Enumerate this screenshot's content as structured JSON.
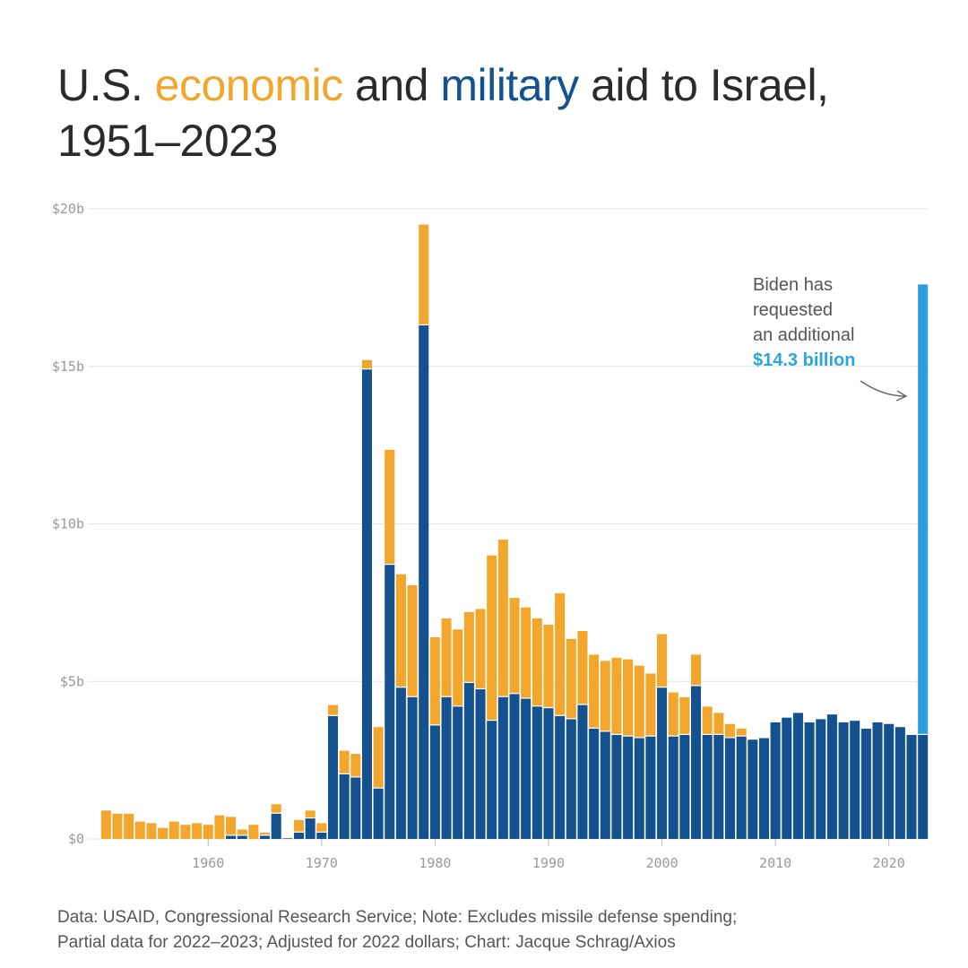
{
  "title": {
    "part1": "U.S. ",
    "economic": "economic",
    "part2": " and ",
    "military": "military",
    "part3": " aid to Israel, 1951–2023"
  },
  "colors": {
    "economic": "#f2a72c",
    "military": "#14528f",
    "requested": "#2a9fe0"
  },
  "annotation": {
    "lines": [
      "Biden has",
      "requested",
      "an additional"
    ],
    "highlight": "$14.3 billion"
  },
  "footer": {
    "line1": "Data: USAID, Congressional Research Service; Note: Excludes missile defense spending;",
    "line2": "Partial data for 2022–2023; Adjusted for 2022 dollars; Chart: Jacque Schrag/Axios"
  },
  "chart_data": {
    "type": "bar",
    "stacked": true,
    "title": "U.S. economic and military aid to Israel, 1951–2023",
    "xlabel": "",
    "ylabel": "",
    "ylim": [
      0,
      20
    ],
    "unit": "billion 2022 dollars",
    "yticks": [
      {
        "value": 0,
        "label": "$0"
      },
      {
        "value": 5,
        "label": "$5b"
      },
      {
        "value": 10,
        "label": "$10b"
      },
      {
        "value": 15,
        "label": "$15b"
      },
      {
        "value": 20,
        "label": "$20b"
      }
    ],
    "xticks": [
      1960,
      1970,
      1980,
      1990,
      2000,
      2010,
      2020
    ],
    "x": [
      1951,
      1952,
      1953,
      1954,
      1955,
      1956,
      1957,
      1958,
      1959,
      1960,
      1961,
      1962,
      1963,
      1964,
      1965,
      1966,
      1967,
      1968,
      1969,
      1970,
      1971,
      1972,
      1973,
      1974,
      1975,
      1976,
      1977,
      1978,
      1979,
      1980,
      1981,
      1982,
      1983,
      1984,
      1985,
      1986,
      1987,
      1988,
      1989,
      1990,
      1991,
      1992,
      1993,
      1994,
      1995,
      1996,
      1997,
      1998,
      1999,
      2000,
      2001,
      2002,
      2003,
      2004,
      2005,
      2006,
      2007,
      2008,
      2009,
      2010,
      2011,
      2012,
      2013,
      2014,
      2015,
      2016,
      2017,
      2018,
      2019,
      2020,
      2021,
      2022,
      2023
    ],
    "series": [
      {
        "name": "Military",
        "values": [
          0,
          0,
          0,
          0,
          0,
          0,
          0,
          0,
          0,
          0,
          0,
          0.1,
          0.1,
          0,
          0.1,
          0.8,
          0.02,
          0.2,
          0.65,
          0.2,
          3.9,
          2.05,
          1.95,
          14.9,
          1.6,
          8.7,
          4.8,
          4.5,
          16.3,
          3.6,
          4.5,
          4.2,
          4.95,
          4.75,
          3.75,
          4.5,
          4.6,
          4.45,
          4.2,
          4.15,
          3.9,
          3.8,
          4.25,
          3.5,
          3.4,
          3.3,
          3.25,
          3.2,
          3.25,
          4.8,
          3.25,
          3.3,
          4.85,
          3.3,
          3.3,
          3.2,
          3.25,
          3.15,
          3.2,
          3.7,
          3.85,
          4.0,
          3.7,
          3.8,
          3.95,
          3.7,
          3.75,
          3.5,
          3.7,
          3.65,
          3.55,
          3.3,
          3.3
        ]
      },
      {
        "name": "Economic",
        "values": [
          0.9,
          0.8,
          0.8,
          0.55,
          0.5,
          0.35,
          0.55,
          0.45,
          0.5,
          0.45,
          0.75,
          0.6,
          0.2,
          0.45,
          0.1,
          0.3,
          0,
          0.4,
          0.25,
          0.3,
          0.35,
          0.75,
          0.75,
          0.3,
          1.95,
          3.65,
          3.6,
          3.55,
          3.2,
          2.8,
          2.5,
          2.45,
          2.25,
          2.55,
          5.25,
          5.0,
          3.05,
          2.9,
          2.8,
          2.65,
          3.9,
          2.55,
          2.35,
          2.35,
          2.25,
          2.45,
          2.45,
          2.3,
          2.0,
          1.7,
          1.4,
          1.2,
          1.0,
          0.9,
          0.7,
          0.45,
          0.25,
          0,
          0,
          0,
          0,
          0,
          0,
          0,
          0,
          0,
          0,
          0,
          0,
          0,
          0,
          0,
          0
        ]
      },
      {
        "name": "Requested additional",
        "values": [
          0,
          0,
          0,
          0,
          0,
          0,
          0,
          0,
          0,
          0,
          0,
          0,
          0,
          0,
          0,
          0,
          0,
          0,
          0,
          0,
          0,
          0,
          0,
          0,
          0,
          0,
          0,
          0,
          0,
          0,
          0,
          0,
          0,
          0,
          0,
          0,
          0,
          0,
          0,
          0,
          0,
          0,
          0,
          0,
          0,
          0,
          0,
          0,
          0,
          0,
          0,
          0,
          0,
          0,
          0,
          0,
          0,
          0,
          0,
          0,
          0,
          0,
          0,
          0,
          0,
          0,
          0,
          0,
          0,
          0,
          0,
          0,
          14.3
        ]
      }
    ]
  }
}
